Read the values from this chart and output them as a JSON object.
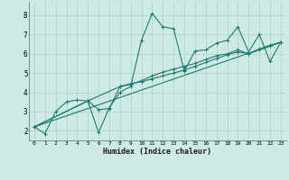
{
  "xlabel": "Humidex (Indice chaleur)",
  "xlim": [
    -0.5,
    23.5
  ],
  "ylim": [
    1.5,
    8.7
  ],
  "xticks": [
    0,
    1,
    2,
    3,
    4,
    5,
    6,
    7,
    8,
    9,
    10,
    11,
    12,
    13,
    14,
    15,
    16,
    17,
    18,
    19,
    20,
    21,
    22,
    23
  ],
  "yticks": [
    2,
    3,
    4,
    5,
    6,
    7,
    8
  ],
  "bg_color": "#ceeae5",
  "grid_color": "#b0d5cf",
  "line_color": "#1e7a6d",
  "lines": [
    {
      "x": [
        0,
        1,
        2,
        3,
        4,
        5,
        6,
        7,
        8,
        9,
        10,
        11,
        12,
        13,
        14,
        15,
        16,
        17,
        18,
        19,
        20,
        21,
        22,
        23
      ],
      "y": [
        2.2,
        1.85,
        3.0,
        3.5,
        3.6,
        3.55,
        1.9,
        3.2,
        4.0,
        4.3,
        6.7,
        8.1,
        7.4,
        7.3,
        5.1,
        6.15,
        6.2,
        6.55,
        6.7,
        7.4,
        6.1,
        7.0,
        5.6,
        6.6
      ],
      "markers": true
    },
    {
      "x": [
        0,
        5,
        6,
        7,
        8,
        9,
        10,
        11,
        12,
        13,
        14,
        15,
        16,
        17,
        18,
        19,
        20,
        21,
        22,
        23
      ],
      "y": [
        2.2,
        3.55,
        3.1,
        3.15,
        4.3,
        4.45,
        4.55,
        4.7,
        4.85,
        5.0,
        5.15,
        5.35,
        5.55,
        5.75,
        5.95,
        6.1,
        6.0,
        6.2,
        6.4,
        6.6
      ],
      "markers": true
    },
    {
      "x": [
        0,
        5,
        8,
        9,
        10,
        11,
        12,
        13,
        14,
        15,
        16,
        17,
        18,
        19,
        20,
        21,
        22,
        23
      ],
      "y": [
        2.2,
        3.55,
        4.3,
        4.4,
        4.6,
        4.85,
        5.05,
        5.2,
        5.35,
        5.5,
        5.7,
        5.9,
        6.0,
        6.2,
        6.0,
        6.25,
        6.45,
        6.6
      ],
      "markers": true
    },
    {
      "x": [
        0,
        23
      ],
      "y": [
        2.2,
        6.6
      ],
      "markers": false
    }
  ]
}
